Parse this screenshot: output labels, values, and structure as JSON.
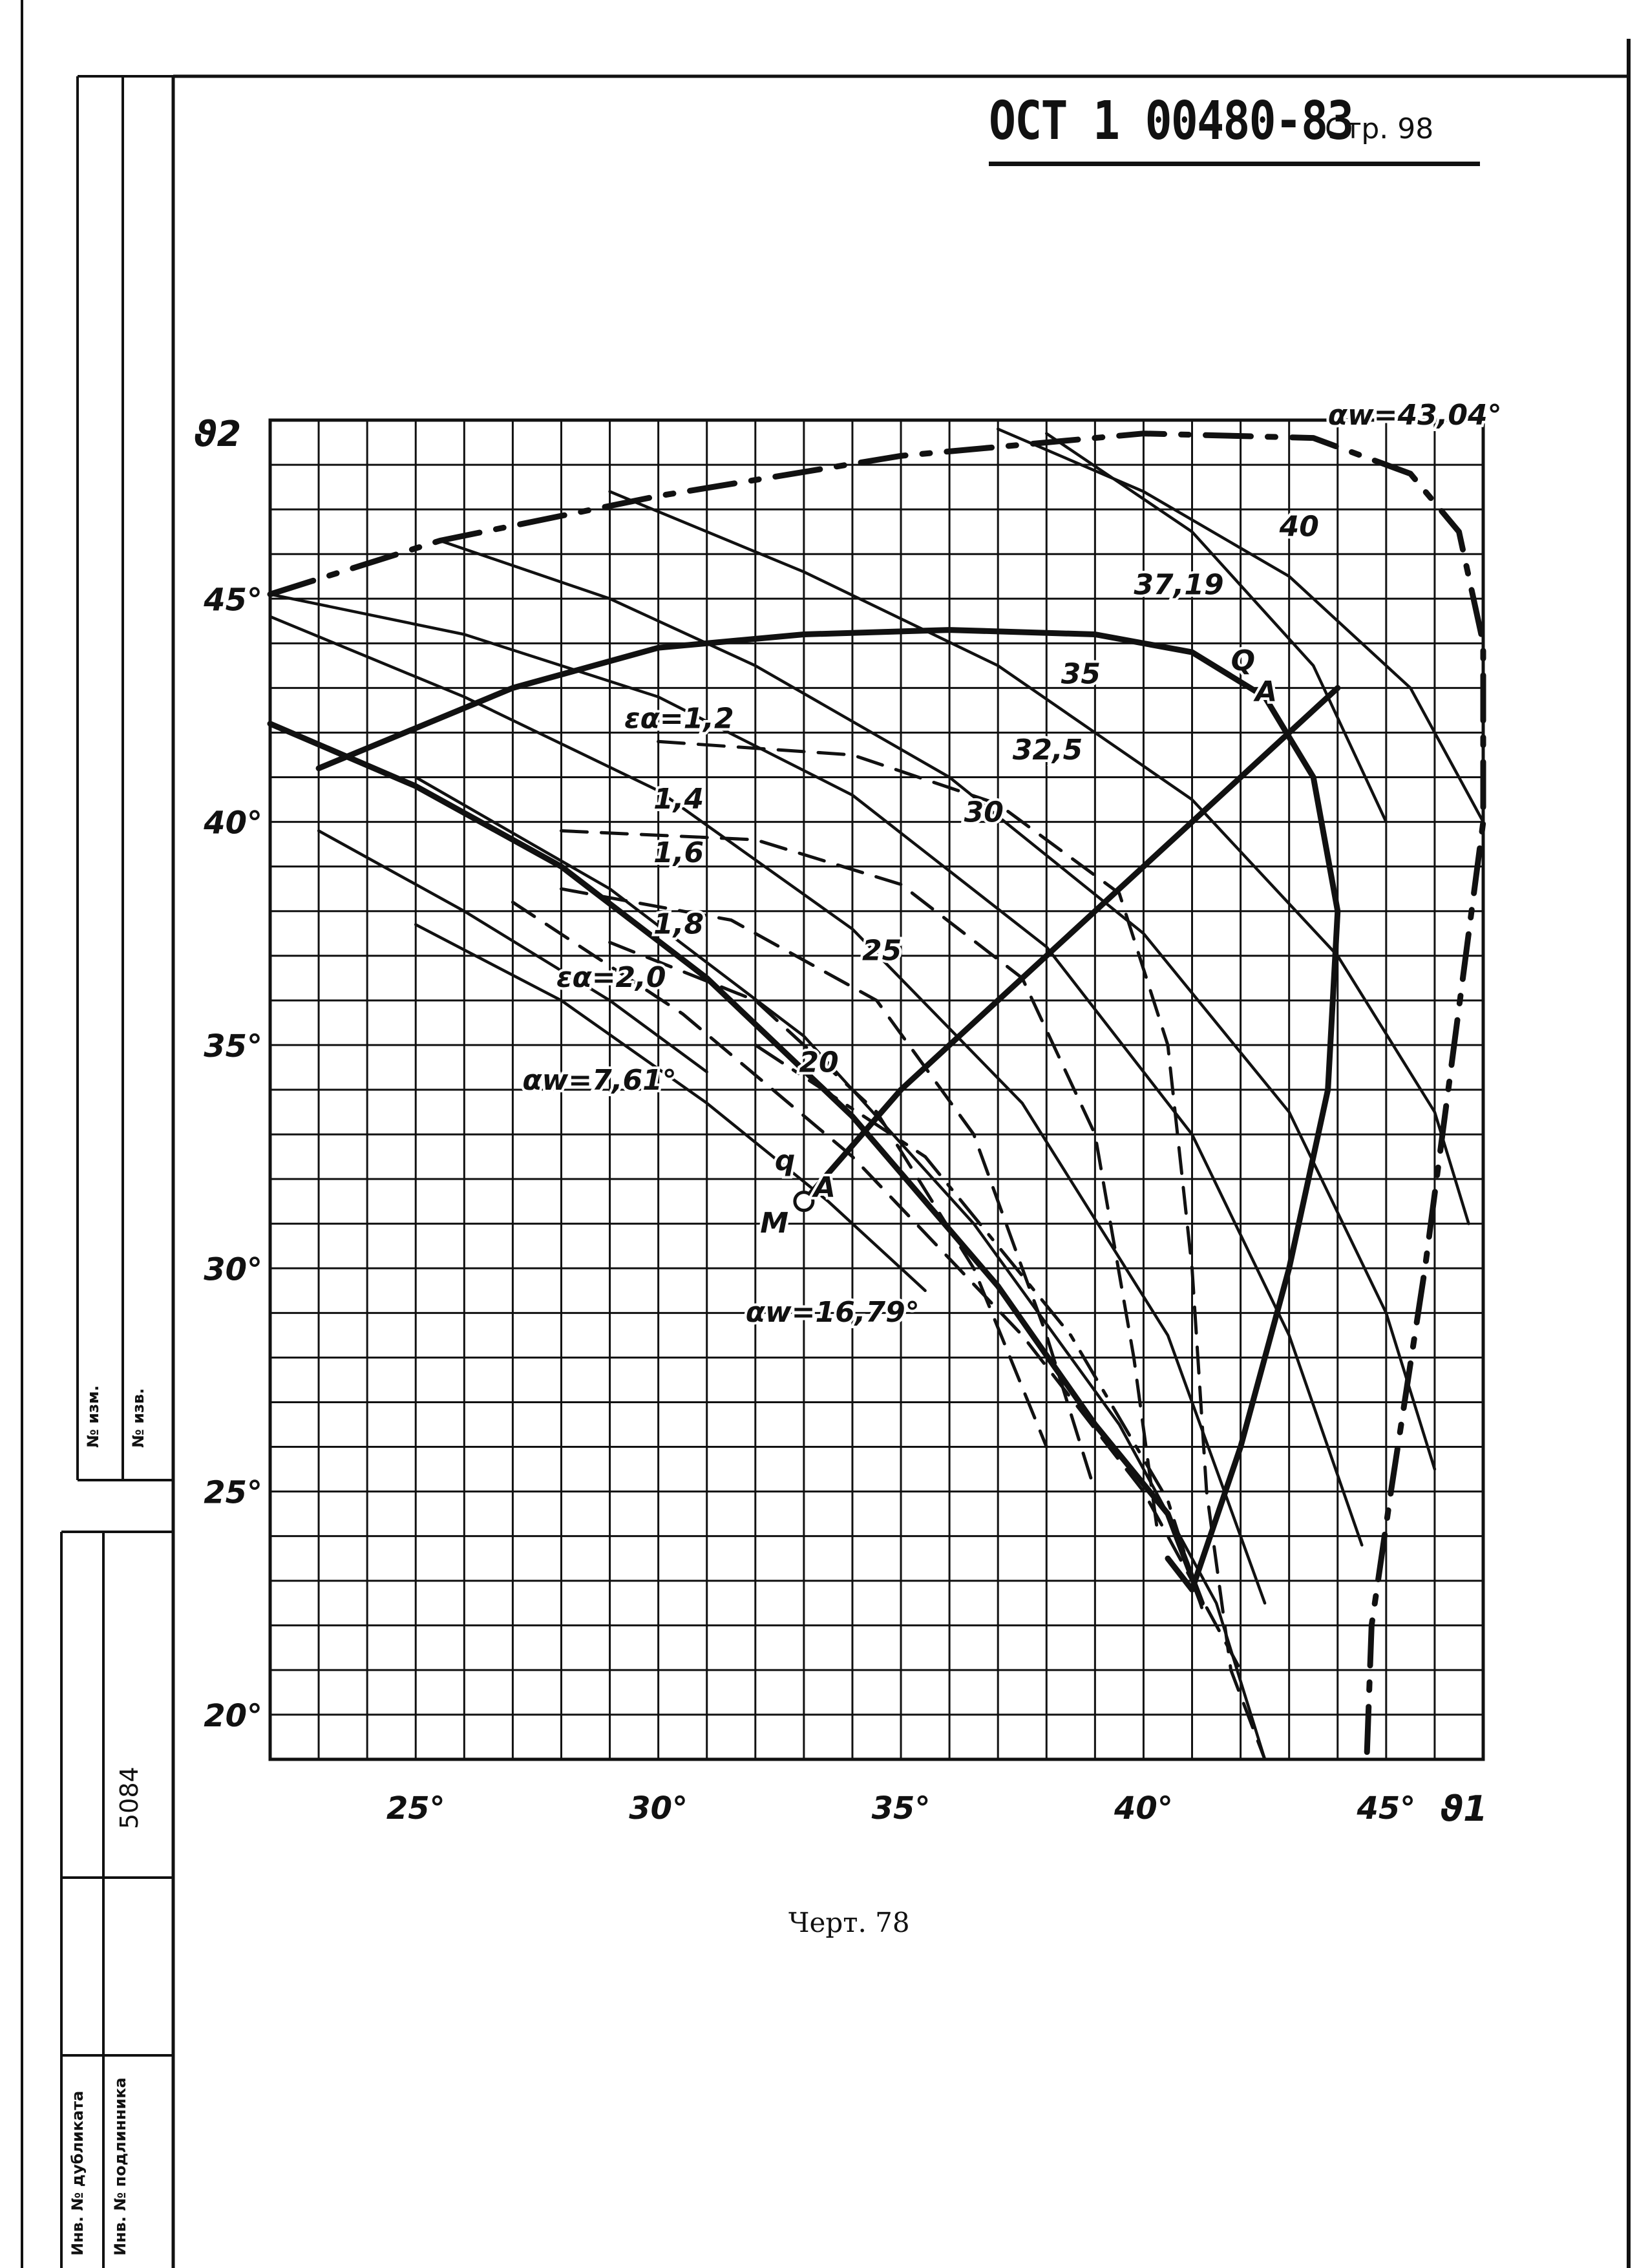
{
  "header": {
    "standard": "ОСТ 1 00480-83",
    "page": "Стр. 98"
  },
  "caption": "Черт. 78",
  "side_stamp": {
    "izm_label": "№ изм.",
    "izv_label": "№ изв.",
    "dubl_label": "Инв. № дубликата",
    "podl_label": "Инв. № подлинника",
    "podl_value": "5084"
  },
  "chart_data": {
    "type": "line",
    "xlabel": "ϑ1",
    "ylabel": "ϑ2",
    "xlim": [
      22,
      47
    ],
    "ylim": [
      19,
      49
    ],
    "grid": true,
    "x_ticks": [
      "25°",
      "30°",
      "35°",
      "40°",
      "45°"
    ],
    "x_tick_values": [
      25,
      30,
      35,
      40,
      45
    ],
    "y_ticks": [
      "20°",
      "25°",
      "30°",
      "35°",
      "40°",
      "45°"
    ],
    "y_tick_values": [
      20,
      25,
      30,
      35,
      40,
      45
    ],
    "series": [
      {
        "name": "αw=43,04°",
        "style": "thick-dashdot",
        "points": [
          [
            22,
            45.1
          ],
          [
            25.5,
            46.3
          ],
          [
            30,
            47.3
          ],
          [
            35,
            48.2
          ],
          [
            40,
            48.7
          ],
          [
            43.5,
            48.6
          ],
          [
            45.5,
            47.8
          ],
          [
            46.5,
            46.5
          ],
          [
            47,
            44
          ],
          [
            47,
            40
          ],
          [
            46.4,
            35
          ],
          [
            45.8,
            30
          ],
          [
            45.1,
            25
          ],
          [
            44.7,
            22
          ],
          [
            44.6,
            19
          ]
        ]
      },
      {
        "name": "αw=7,61°",
        "style": "thick-solid",
        "points": [
          [
            23,
            41.2
          ],
          [
            27,
            43
          ],
          [
            30,
            43.9
          ],
          [
            33,
            44.2
          ],
          [
            36,
            44.3
          ],
          [
            39,
            44.2
          ],
          [
            41,
            43.8
          ],
          [
            42.5,
            42.8
          ],
          [
            43.5,
            41
          ],
          [
            44,
            38
          ],
          [
            43.8,
            34
          ],
          [
            43,
            30
          ],
          [
            42,
            26
          ],
          [
            41,
            22.8
          ],
          [
            40.5,
            23.5
          ]
        ]
      },
      {
        "name": "αw=16,79°",
        "style": "thick-solid",
        "points": [
          [
            22,
            42.2
          ],
          [
            25,
            40.8
          ],
          [
            28,
            39
          ],
          [
            31,
            36.5
          ],
          [
            34,
            33.4
          ],
          [
            37,
            29.6
          ],
          [
            39,
            26.5
          ],
          [
            40.5,
            24.5
          ],
          [
            41.2,
            22.5
          ]
        ]
      },
      {
        "name": "Q–M",
        "style": "thick-solid",
        "points": [
          [
            44,
            43
          ],
          [
            35,
            34
          ],
          [
            33,
            31.5
          ]
        ]
      },
      {
        "name": "40",
        "style": "solid",
        "points": [
          [
            37,
            48.8
          ],
          [
            40,
            47.4
          ],
          [
            43,
            45.5
          ],
          [
            45.5,
            43
          ],
          [
            47,
            40
          ]
        ]
      },
      {
        "name": "37,19",
        "style": "solid",
        "points": [
          [
            38,
            48.7
          ],
          [
            41,
            46.5
          ],
          [
            43.5,
            43.5
          ],
          [
            45,
            40
          ]
        ]
      },
      {
        "name": "35",
        "style": "solid",
        "points": [
          [
            29,
            47.4
          ],
          [
            33,
            45.6
          ],
          [
            37,
            43.5
          ],
          [
            41,
            40.5
          ],
          [
            44,
            37
          ],
          [
            46,
            33.5
          ],
          [
            46.7,
            31
          ]
        ]
      },
      {
        "name": "32,5",
        "style": "solid",
        "points": [
          [
            25.5,
            46.3
          ],
          [
            29,
            45
          ],
          [
            32,
            43.5
          ],
          [
            36,
            41
          ],
          [
            40,
            37.5
          ],
          [
            43,
            33.5
          ],
          [
            45,
            29
          ],
          [
            46,
            25.5
          ]
        ]
      },
      {
        "name": "30",
        "style": "solid",
        "points": [
          [
            22,
            45.1
          ],
          [
            26,
            44.2
          ],
          [
            30,
            42.8
          ],
          [
            34,
            40.6
          ],
          [
            38,
            37.2
          ],
          [
            41,
            33
          ],
          [
            43,
            28.5
          ],
          [
            44.5,
            23.8
          ]
        ]
      },
      {
        "name": "25",
        "style": "solid",
        "points": [
          [
            22,
            44.6
          ],
          [
            26,
            42.8
          ],
          [
            30,
            40.7
          ],
          [
            34,
            37.6
          ],
          [
            37.5,
            33.7
          ],
          [
            40.5,
            28.5
          ],
          [
            42.5,
            22.5
          ]
        ]
      },
      {
        "name": "20",
        "style": "solid",
        "points": [
          [
            25,
            41
          ],
          [
            29,
            38.5
          ],
          [
            33,
            35.2
          ],
          [
            36.5,
            31
          ],
          [
            39.5,
            26.5
          ],
          [
            41.5,
            22.5
          ],
          [
            42.5,
            19
          ]
        ]
      },
      {
        "name": "εα=1,2",
        "style": "dashed",
        "points": [
          [
            30,
            41.8
          ],
          [
            34,
            41.5
          ],
          [
            37,
            40.4
          ],
          [
            39.5,
            38.4
          ],
          [
            40.5,
            35
          ],
          [
            41,
            30
          ],
          [
            41.3,
            25
          ],
          [
            41.8,
            21
          ],
          [
            42.5,
            19
          ]
        ]
      },
      {
        "name": "1,4",
        "style": "dashed",
        "points": [
          [
            28,
            39.8
          ],
          [
            32,
            39.6
          ],
          [
            35,
            38.6
          ],
          [
            37.5,
            36.5
          ],
          [
            39,
            33
          ],
          [
            39.8,
            28
          ],
          [
            40.3,
            24
          ]
        ]
      },
      {
        "name": "1,6",
        "style": "dashed",
        "points": [
          [
            28,
            38.5
          ],
          [
            31.5,
            37.8
          ],
          [
            34.5,
            36
          ],
          [
            36.5,
            33
          ],
          [
            38,
            28.5
          ],
          [
            39,
            25
          ]
        ]
      },
      {
        "name": "1,8",
        "style": "dashed",
        "points": [
          [
            29,
            37.3
          ],
          [
            32,
            36
          ],
          [
            34.5,
            33.5
          ],
          [
            36.5,
            30
          ],
          [
            38,
            26
          ]
        ]
      },
      {
        "name": "εα=2,0",
        "style": "dashed",
        "points": [
          [
            27,
            38.2
          ],
          [
            30.5,
            35.7
          ],
          [
            34,
            32.5
          ],
          [
            37.5,
            28.5
          ],
          [
            40,
            25
          ],
          [
            42,
            21
          ]
        ]
      },
      {
        "name": "",
        "style": "dashdot",
        "points": [
          [
            32,
            35
          ],
          [
            35.5,
            32.5
          ],
          [
            38.5,
            28.5
          ],
          [
            40.5,
            24.8
          ],
          [
            41.2,
            22.4
          ]
        ]
      },
      {
        "name": "",
        "style": "solid",
        "points": [
          [
            25,
            37.7
          ],
          [
            28,
            36
          ],
          [
            31,
            33.7
          ],
          [
            33.5,
            31.5
          ],
          [
            35.5,
            29.5
          ]
        ]
      },
      {
        "name": "",
        "style": "solid",
        "points": [
          [
            23,
            39.8
          ],
          [
            26,
            38
          ],
          [
            29,
            36
          ],
          [
            31,
            34.4
          ]
        ]
      }
    ],
    "annotations": [
      {
        "text": "αw=43,04°",
        "x": 43.8,
        "y": 48.9
      },
      {
        "text": "40",
        "x": 42.8,
        "y": 46.4
      },
      {
        "text": "37,19",
        "x": 39.8,
        "y": 45.1
      },
      {
        "text": "35",
        "x": 38.3,
        "y": 43.1
      },
      {
        "text": "Q",
        "x": 41.8,
        "y": 43.4
      },
      {
        "text": "A",
        "x": 42.3,
        "y": 42.7
      },
      {
        "text": "32,5",
        "x": 37.3,
        "y": 41.4
      },
      {
        "text": "εα=1,2",
        "x": 29.3,
        "y": 42.1
      },
      {
        "text": "30",
        "x": 36.3,
        "y": 40
      },
      {
        "text": "1,4",
        "x": 29.9,
        "y": 40.3
      },
      {
        "text": "1,6",
        "x": 29.9,
        "y": 39.1
      },
      {
        "text": "25",
        "x": 34.2,
        "y": 36.9
      },
      {
        "text": "1,8",
        "x": 29.9,
        "y": 37.5
      },
      {
        "text": "εα=2,0",
        "x": 27.9,
        "y": 36.3
      },
      {
        "text": "20",
        "x": 32.9,
        "y": 34.4
      },
      {
        "text": "αw=7,61°",
        "x": 27.2,
        "y": 34
      },
      {
        "text": "q",
        "x": 32.4,
        "y": 32.2
      },
      {
        "text": "A",
        "x": 33.2,
        "y": 31.6
      },
      {
        "text": "M",
        "x": 32.1,
        "y": 30.8
      },
      {
        "text": "αw=16,79°",
        "x": 31.8,
        "y": 28.8
      }
    ],
    "marker": {
      "label": "M",
      "x": 33,
      "y": 31.5
    }
  }
}
